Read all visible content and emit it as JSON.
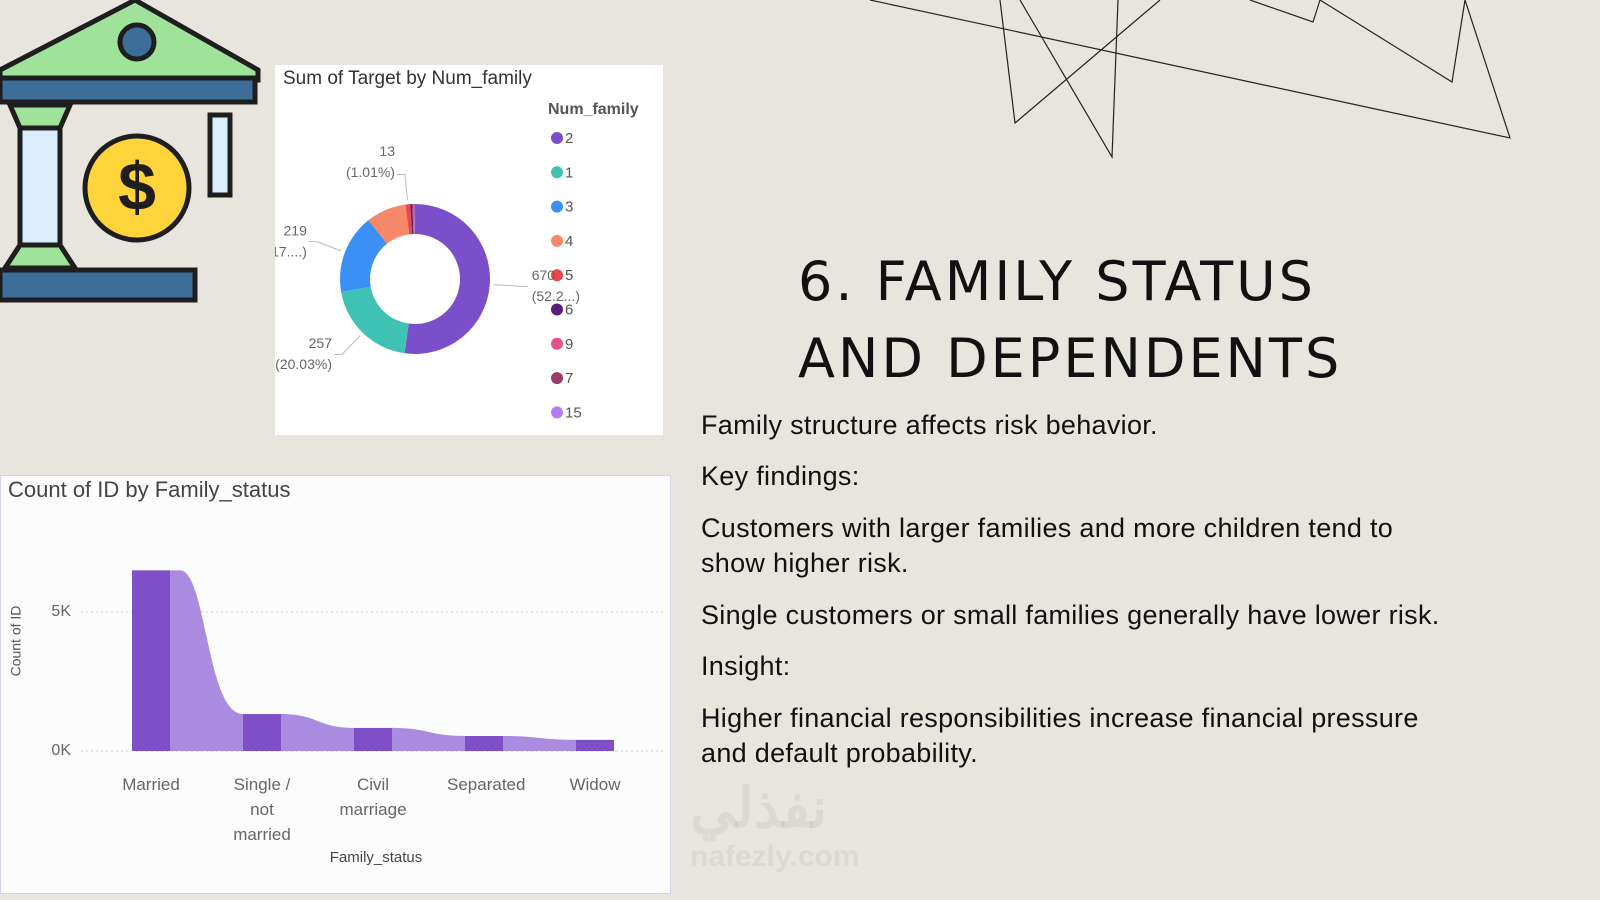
{
  "slide": {
    "title_lines": [
      "6. FAMILY STATUS",
      "AND DEPENDENTS"
    ],
    "paragraphs": [
      [
        "Family structure affects risk behavior."
      ],
      [
        "Key findings:"
      ],
      [
        "Customers with larger families and more children tend to",
        "show higher risk."
      ],
      [
        "Single customers or small families generally have lower risk."
      ],
      [
        "Insight:"
      ],
      [
        "Higher financial responsibilities increase financial pressure",
        "and default probability."
      ]
    ],
    "watermark": [
      "نفذلي",
      "nafezly.com"
    ]
  },
  "chart_data": [
    {
      "type": "donut",
      "title": "Sum of Target by Num_family",
      "legend_title": "Num_family",
      "legend_position": "right",
      "categories": [
        "2",
        "1",
        "3",
        "4",
        "5",
        "6",
        "9",
        "7",
        "15"
      ],
      "values": [
        670,
        257,
        219,
        111,
        13,
        6,
        4,
        2,
        1
      ],
      "colors": [
        "#7b4fc9",
        "#3fc1b4",
        "#3b8ff5",
        "#f5896a",
        "#e5484d",
        "#5b1f7a",
        "#e6518c",
        "#9e3a6b",
        "#b57cf2"
      ],
      "percent_labels": [
        "(52.2...)",
        "(20.03%)",
        "(17....)",
        null,
        "(1.01%)",
        null,
        null,
        null,
        null
      ]
    },
    {
      "type": "bar",
      "title": "Count of ID by Family_status",
      "x_label": "Family_status",
      "y_label": "Count of ID",
      "categories": [
        "Married",
        "Single / not married",
        "Civil marriage",
        "Separated",
        "Widow"
      ],
      "values": [
        6500,
        1330,
        830,
        540,
        400
      ],
      "color": "#7e4fc6",
      "ribbon_color": "#a98ce0",
      "ylim": [
        0,
        6800
      ],
      "yticks": [
        {
          "value": 0,
          "label": "0K"
        },
        {
          "value": 5000,
          "label": "5K"
        }
      ],
      "grid": true
    }
  ]
}
